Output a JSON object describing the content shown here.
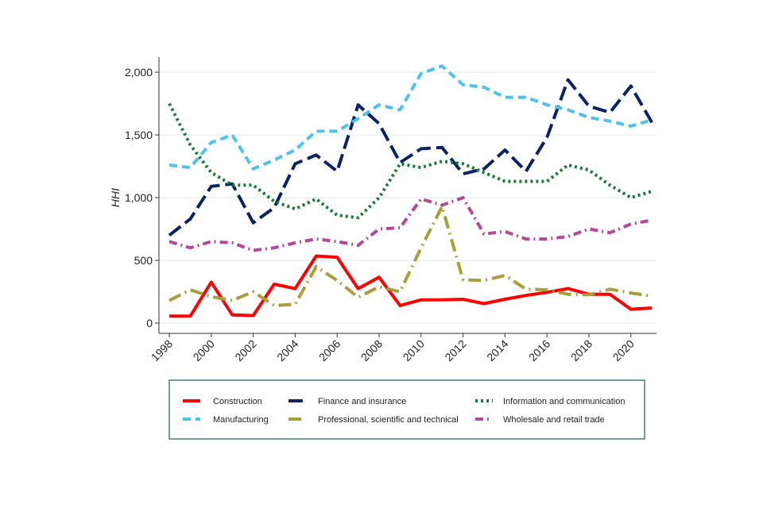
{
  "chart_data": {
    "type": "line",
    "title": "",
    "xlabel": "",
    "ylabel": "HHI",
    "x": [
      1998,
      1999,
      2000,
      2001,
      2002,
      2003,
      2004,
      2005,
      2006,
      2007,
      2008,
      2009,
      2010,
      2011,
      2012,
      2013,
      2014,
      2015,
      2016,
      2017,
      2018,
      2019,
      2020,
      2021
    ],
    "xlim": [
      1998,
      2021
    ],
    "ylim": [
      0,
      2100
    ],
    "xticks": [
      1998,
      2000,
      2002,
      2004,
      2006,
      2008,
      2010,
      2012,
      2014,
      2016,
      2018,
      2020
    ],
    "xtick_labels": [
      "1998",
      "2000",
      "2002",
      "2004",
      "2006",
      "2008",
      "2010",
      "2012",
      "2014",
      "2016",
      "2018",
      "2020"
    ],
    "yticks": [
      0,
      500,
      1000,
      1500,
      2000
    ],
    "ytick_labels": [
      "0",
      "500",
      "1,000",
      "1,500",
      "2,000"
    ],
    "grid": true,
    "legend_position": "bottom",
    "series": [
      {
        "name": "Construction",
        "color": "#ff0000",
        "style": "solid",
        "values": [
          55,
          55,
          325,
          65,
          60,
          310,
          275,
          535,
          525,
          275,
          365,
          140,
          185,
          185,
          190,
          155,
          190,
          220,
          245,
          275,
          230,
          230,
          110,
          120
        ]
      },
      {
        "name": "Finance and insurance",
        "color": "#0b2265",
        "style": "longdash",
        "values": [
          700,
          830,
          1090,
          1110,
          800,
          920,
          1270,
          1340,
          1210,
          1740,
          1590,
          1280,
          1390,
          1400,
          1190,
          1230,
          1380,
          1210,
          1480,
          1940,
          1730,
          1680,
          1890,
          1600
        ]
      },
      {
        "name": "Information and communication",
        "color": "#1a7a35",
        "style": "dot",
        "values": [
          1750,
          1420,
          1200,
          1100,
          1100,
          970,
          910,
          990,
          860,
          840,
          1000,
          1270,
          1240,
          1290,
          1270,
          1200,
          1130,
          1130,
          1130,
          1260,
          1220,
          1100,
          1000,
          1050
        ]
      },
      {
        "name": "Manufacturing",
        "color": "#4fc3ea",
        "style": "dash",
        "values": [
          1260,
          1240,
          1440,
          1500,
          1230,
          1300,
          1380,
          1530,
          1530,
          1630,
          1740,
          1700,
          1990,
          2050,
          1900,
          1880,
          1800,
          1800,
          1740,
          1700,
          1640,
          1610,
          1570,
          1620
        ]
      },
      {
        "name": "Professional, scientific and technical",
        "color": "#a89e3a",
        "style": "longdashdot",
        "values": [
          180,
          265,
          210,
          180,
          250,
          140,
          150,
          450,
          340,
          205,
          290,
          250,
          600,
          930,
          345,
          340,
          380,
          270,
          265,
          230,
          225,
          270,
          240,
          215
        ]
      },
      {
        "name": "Wholesale and retail trade",
        "color": "#b5489a",
        "style": "dashdot",
        "values": [
          650,
          600,
          650,
          640,
          580,
          600,
          640,
          670,
          650,
          620,
          750,
          760,
          990,
          940,
          1000,
          710,
          730,
          670,
          670,
          690,
          750,
          720,
          790,
          820
        ]
      }
    ]
  }
}
